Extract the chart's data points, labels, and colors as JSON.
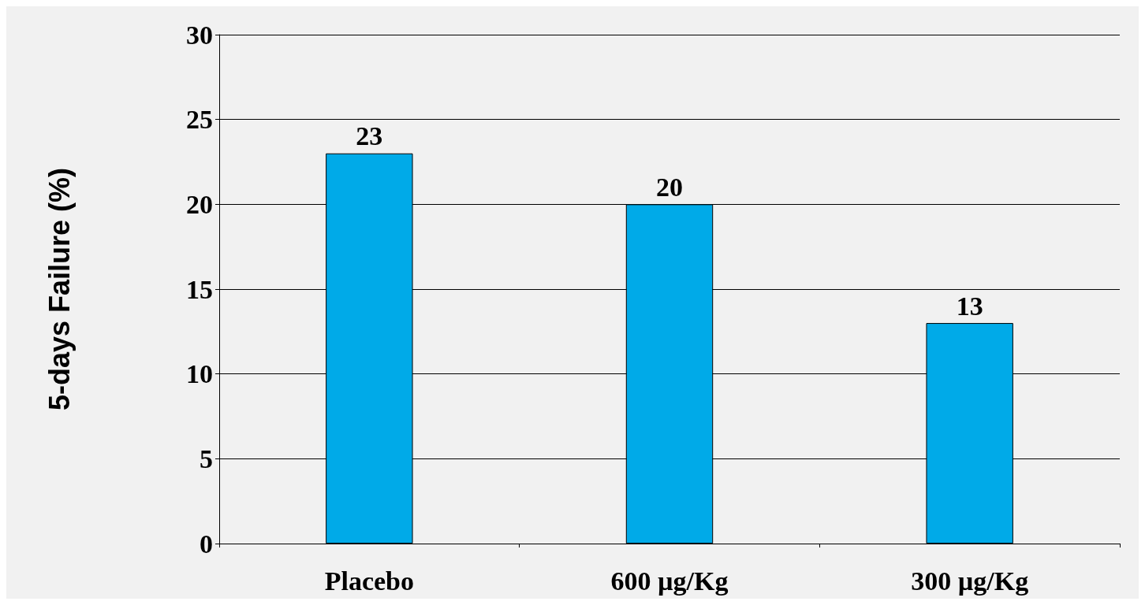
{
  "chart_data": {
    "type": "bar",
    "ylabel": "5-days Failure (%)",
    "categories": [
      "Placebo",
      "600 µg/Kg",
      "300 µg/Kg"
    ],
    "values": [
      23,
      20,
      13
    ],
    "color": "#00aae8",
    "ylim": [
      0,
      30
    ],
    "yticks": [
      0,
      5,
      10,
      15,
      20,
      25,
      30
    ],
    "grid": "y",
    "data_labels": true
  }
}
